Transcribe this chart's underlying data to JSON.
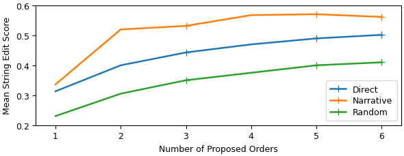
{
  "x": [
    1,
    2,
    3,
    4,
    5,
    6
  ],
  "direct": [
    0.313,
    0.4,
    0.443,
    0.47,
    0.49,
    0.502
  ],
  "narrative": [
    0.336,
    0.52,
    0.532,
    0.568,
    0.571,
    0.562
  ],
  "random": [
    0.23,
    0.305,
    0.35,
    0.375,
    0.4,
    0.41
  ],
  "direct_color": "#1f77b4",
  "narrative_color": "#ff7f0e",
  "random_color": "#2ca02c",
  "xlabel": "Number of Proposed Orders",
  "ylabel": "Mean String Edit Score",
  "ylim": [
    0.2,
    0.6
  ],
  "yticks": [
    0.2,
    0.3,
    0.4,
    0.5,
    0.6
  ],
  "xticks": [
    1,
    2,
    3,
    4,
    5,
    6
  ],
  "legend_labels": [
    "Direct",
    "Narrative",
    "Random"
  ],
  "marker": "+",
  "markevery": [
    2,
    4,
    5
  ],
  "linewidth": 1.8,
  "markersize": 7
}
